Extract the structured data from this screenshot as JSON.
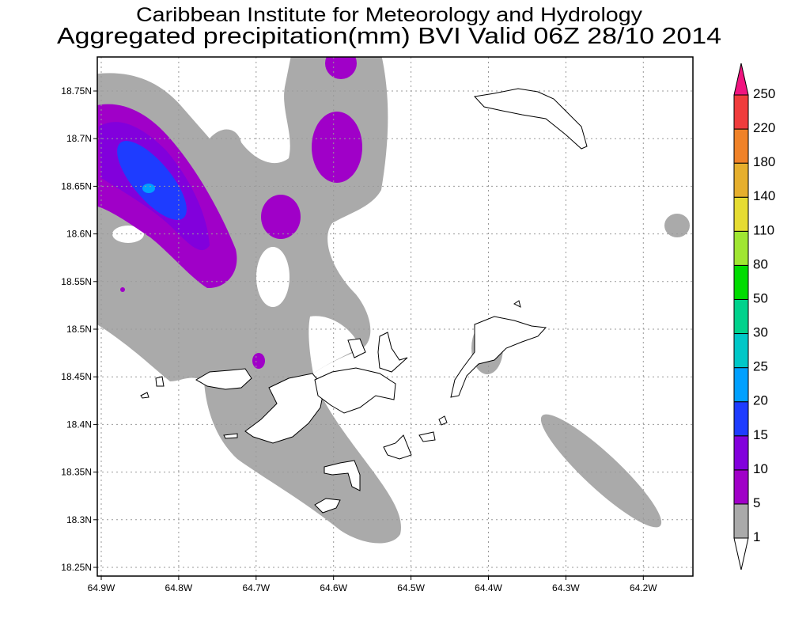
{
  "chart_data": {
    "type": "contour-map",
    "title_line1": "Caribbean Institute for Meteorology and Hydrology",
    "title_line2": "Aggregated precipitation(mm) BVI Valid 06Z 28/10 2014",
    "variable": "Aggregated precipitation (mm)",
    "region": "BVI",
    "x_ticks": [
      "64.9W",
      "64.8W",
      "64.7W",
      "64.6W",
      "64.5W",
      "64.4W",
      "64.3W",
      "64.2W"
    ],
    "x_values": [
      -64.9,
      -64.8,
      -64.7,
      -64.6,
      -64.5,
      -64.4,
      -64.3,
      -64.2
    ],
    "y_ticks": [
      "18.75N",
      "18.7N",
      "18.65N",
      "18.6N",
      "18.55N",
      "18.5N",
      "18.45N",
      "18.4N",
      "18.35N",
      "18.3N",
      "18.25N"
    ],
    "y_values": [
      18.75,
      18.7,
      18.65,
      18.6,
      18.55,
      18.5,
      18.45,
      18.4,
      18.35,
      18.3,
      18.25
    ],
    "grid": true,
    "colorbar": {
      "placement": "right",
      "levels": [
        "1",
        "5",
        "10",
        "15",
        "20",
        "25",
        "30",
        "50",
        "80",
        "110",
        "140",
        "180",
        "220",
        "250"
      ],
      "colors": [
        "#ffffff",
        "#aaaaaa",
        "#a000c8",
        "#8200dc",
        "#1e3cff",
        "#00a0ff",
        "#00c8c8",
        "#00d28c",
        "#00dc00",
        "#a0e632",
        "#e6dc32",
        "#e6af2d",
        "#f08228",
        "#f03c3c",
        "#f0147f"
      ]
    },
    "observations": {
      "max_precip_range_mm": "20-25",
      "max_location": "near 64.84W 18.65N"
    }
  }
}
